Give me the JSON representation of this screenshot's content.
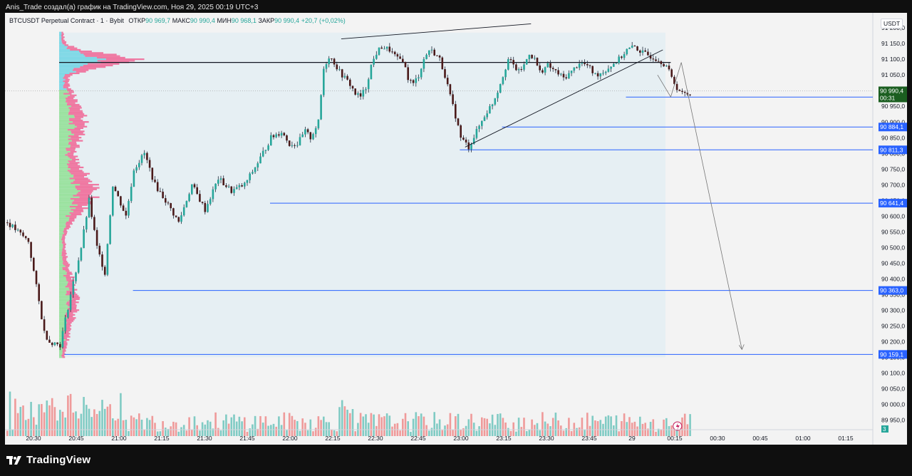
{
  "header": {
    "author_line": "Anis_Trade создал(а) график на TradingView.com, Ноя 29, 2025 00:19 UTC+3"
  },
  "legend": {
    "symbol": "BTCUSDT Perpetual Contract · 1 · Bybit",
    "open_label": "ОТКР",
    "open": "90 969,7",
    "high_label": "МАКС",
    "high": "90 990,4",
    "low_label": "МИН",
    "low": "90 968,1",
    "close_label": "ЗАКР",
    "close": "90 990,4",
    "change": "+20,7 (+0,02%)"
  },
  "currency": "USDT",
  "brand": {
    "name": "TradingView"
  },
  "colors": {
    "bull": "#26a69a",
    "bear": "#ef5350",
    "candle_body": "#1e2a3a",
    "level_line": "#2962ff",
    "profile_bull": "#7fd8e6",
    "profile_bear": "#f06292",
    "profile_green": "#9be2a0",
    "volume_bull": "#80cbc4",
    "volume_bear": "#ef9a9a",
    "last_price_bg": "#1b5e20"
  },
  "chart_data": {
    "type": "candlestick",
    "instrument": "BTCUSDT Perpetual Contract",
    "interval": "1",
    "exchange": "Bybit",
    "y_axis": {
      "ticks": [
        "91 200,0",
        "91 150,0",
        "91 100,0",
        "91 050,0",
        "91 000,0",
        "90 950,0",
        "90 900,0",
        "90 850,0",
        "90 800,0",
        "90 750,0",
        "90 700,0",
        "90 650,0",
        "90 600,0",
        "90 550,0",
        "90 500,0",
        "90 450,0",
        "90 400,0",
        "90 350,0",
        "90 300,0",
        "90 250,0",
        "90 200,0",
        "90 150,0",
        "90 100,0",
        "90 050,0",
        "90 000,0",
        "89 950,0"
      ],
      "ylim": [
        89935,
        91230
      ]
    },
    "x_axis": {
      "ticks": [
        "20:30",
        "20:45",
        "21:00",
        "21:15",
        "21:30",
        "21:45",
        "22:00",
        "22:15",
        "22:30",
        "22:45",
        "23:00",
        "23:15",
        "23:30",
        "23:45",
        "29",
        "00:15",
        "00:30",
        "00:45",
        "01:00",
        "01:15"
      ]
    },
    "close_path": [
      [
        0,
        90580
      ],
      [
        8,
        90520
      ],
      [
        14,
        90230
      ],
      [
        16,
        90200
      ],
      [
        20,
        90190
      ],
      [
        24,
        90350
      ],
      [
        28,
        90500
      ],
      [
        31,
        90650
      ],
      [
        34,
        90500
      ],
      [
        37,
        90420
      ],
      [
        40,
        90700
      ],
      [
        45,
        90600
      ],
      [
        48,
        90750
      ],
      [
        52,
        90800
      ],
      [
        56,
        90700
      ],
      [
        60,
        90650
      ],
      [
        65,
        90580
      ],
      [
        70,
        90700
      ],
      [
        75,
        90620
      ],
      [
        80,
        90720
      ],
      [
        85,
        90680
      ],
      [
        90,
        90700
      ],
      [
        95,
        90770
      ],
      [
        100,
        90850
      ],
      [
        104,
        90870
      ],
      [
        107,
        90830
      ],
      [
        110,
        90830
      ],
      [
        113,
        90870
      ],
      [
        115,
        90850
      ],
      [
        118,
        90900
      ],
      [
        120,
        91070
      ],
      [
        122,
        91110
      ],
      [
        124,
        91090
      ],
      [
        126,
        91060
      ],
      [
        128,
        91040
      ],
      [
        130,
        91020
      ],
      [
        132,
        90990
      ],
      [
        134,
        90980
      ],
      [
        136,
        91010
      ],
      [
        138,
        91080
      ],
      [
        140,
        91120
      ],
      [
        142,
        91140
      ],
      [
        145,
        91130
      ],
      [
        148,
        91100
      ],
      [
        150,
        91100
      ],
      [
        152,
        91040
      ],
      [
        154,
        91020
      ],
      [
        156,
        91050
      ],
      [
        158,
        91100
      ],
      [
        160,
        91130
      ],
      [
        162,
        91120
      ],
      [
        164,
        91100
      ],
      [
        166,
        91050
      ],
      [
        168,
        90980
      ],
      [
        170,
        90920
      ],
      [
        172,
        90850
      ],
      [
        175,
        90820
      ],
      [
        178,
        90870
      ],
      [
        181,
        90920
      ],
      [
        184,
        90960
      ],
      [
        186,
        91000
      ],
      [
        188,
        91050
      ],
      [
        190,
        91100
      ],
      [
        192,
        91080
      ],
      [
        194,
        91060
      ],
      [
        196,
        91080
      ],
      [
        198,
        91120
      ],
      [
        200,
        91100
      ],
      [
        202,
        91060
      ],
      [
        205,
        91080
      ],
      [
        208,
        91060
      ],
      [
        211,
        91040
      ],
      [
        214,
        91060
      ],
      [
        217,
        91090
      ],
      [
        220,
        91080
      ],
      [
        223,
        91050
      ],
      [
        226,
        91060
      ],
      [
        229,
        91080
      ],
      [
        232,
        91100
      ],
      [
        235,
        91130
      ],
      [
        238,
        91140
      ],
      [
        241,
        91120
      ],
      [
        244,
        91110
      ],
      [
        247,
        91100
      ],
      [
        250,
        91080
      ],
      [
        252,
        91040
      ],
      [
        254,
        91010
      ],
      [
        256,
        90990
      ]
    ],
    "volume_profile": [
      {
        "price": 91095,
        "width": 0.62,
        "kind": "poc"
      },
      {
        "price": 90900,
        "width": 0.22,
        "kind": "lower"
      },
      {
        "price": 90680,
        "width": 0.37,
        "kind": "lower"
      },
      {
        "price": 90300,
        "width": 0.14,
        "kind": "lower"
      }
    ],
    "levels": [
      {
        "price": 91090,
        "label": "",
        "kind": "poc"
      },
      {
        "price": 90979.6,
        "label": "90 979,6"
      },
      {
        "price": 90884.1,
        "label": "90 884,1"
      },
      {
        "price": 90811.3,
        "label": "90 811,3"
      },
      {
        "price": 90641.4,
        "label": "90 641,4"
      },
      {
        "price": 90363.0,
        "label": "90 363,0"
      },
      {
        "price": 90159.1,
        "label": "90 159,1"
      }
    ],
    "last_price": {
      "value": "90 990,4",
      "countdown": "00:31"
    },
    "trend_lines": [
      {
        "from": [
          127,
          91165
        ],
        "to": [
          199,
          91213
        ]
      },
      {
        "from": [
          174,
          90820
        ],
        "to": [
          249,
          91130
        ]
      }
    ],
    "projection": [
      [
        247,
        91050
      ],
      [
        252,
        90980
      ],
      [
        256,
        91090
      ],
      [
        279,
        90175
      ]
    ],
    "volume_badge": "3"
  }
}
